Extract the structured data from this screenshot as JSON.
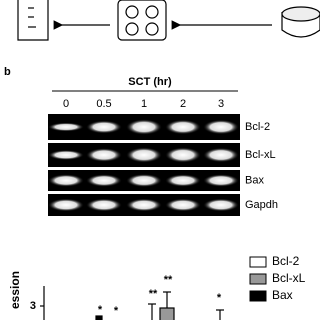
{
  "panel_label": "b",
  "gel": {
    "title": "SCT (hr)",
    "lanes": [
      "0",
      "0.5",
      "1",
      "2",
      "3"
    ],
    "rows": [
      "Bcl-2",
      "Bcl-xL",
      "Bax",
      "Gapdh"
    ]
  },
  "chart": {
    "legend": [
      "Bcl-2",
      "Bcl-xL",
      "Bax"
    ],
    "y_axis_label": "ession",
    "y_tick": "3",
    "significance": [
      "*",
      "*",
      "**",
      "**",
      "*"
    ]
  }
}
